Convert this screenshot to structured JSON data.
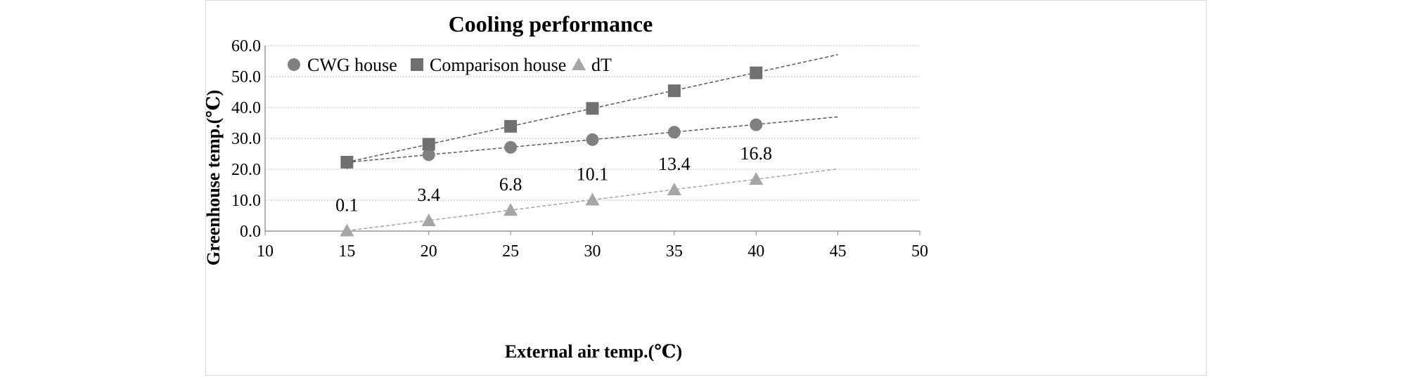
{
  "chart_data": {
    "type": "scatter",
    "title": "Cooling performance",
    "xlabel": "External air temp.(℃)",
    "ylabel": "Greenhouse temp.(℃)",
    "xlim": [
      10,
      50
    ],
    "ylim": [
      0,
      60
    ],
    "xticks": [
      10,
      15,
      20,
      25,
      30,
      35,
      40,
      45,
      50
    ],
    "yticks": [
      "0.0",
      "10.0",
      "20.0",
      "30.0",
      "40.0",
      "50.0",
      "60.0"
    ],
    "ytick_values": [
      0,
      10,
      20,
      30,
      40,
      50,
      60
    ],
    "grid": true,
    "legend_position": "top-left",
    "x": [
      15,
      20,
      25,
      30,
      35,
      40
    ],
    "trendline_x_range": [
      15,
      45
    ],
    "series": [
      {
        "name": "CWG house",
        "marker": "circle",
        "color": "#808080",
        "values": [
          22.2,
          24.7,
          27.1,
          29.6,
          32.0,
          34.4
        ],
        "trend": {
          "slope": 0.49,
          "intercept": 14.9
        }
      },
      {
        "name": "Comparison house",
        "marker": "square",
        "color": "#707070",
        "values": [
          22.3,
          28.1,
          33.9,
          39.7,
          45.4,
          51.2
        ],
        "trend": {
          "slope": 1.16,
          "intercept": 4.9
        }
      },
      {
        "name": "dT",
        "marker": "triangle",
        "color": "#a6a6a6",
        "values": [
          0.1,
          3.4,
          6.8,
          10.1,
          13.4,
          16.8
        ],
        "labels": [
          "0.1",
          "3.4",
          "6.8",
          "10.1",
          "13.4",
          "16.8"
        ],
        "trend": {
          "slope": 0.667,
          "intercept": -9.9
        }
      }
    ]
  }
}
